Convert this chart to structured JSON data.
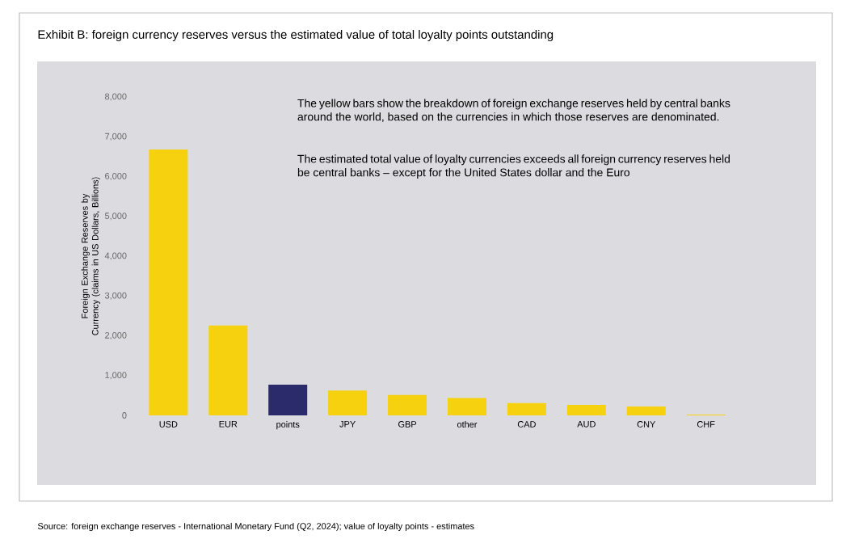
{
  "chart_data": {
    "type": "bar",
    "title": "Exhibit B: foreign currency reserves versus the estimated value of total loyalty points outstanding",
    "ylabel": "Foreign Exchange Reserves by Currency (claims in US Dollars, Billions)",
    "categories": [
      "USD",
      "EUR",
      "points",
      "JPY",
      "GBP",
      "other",
      "CAD",
      "AUD",
      "CNY",
      "CHF"
    ],
    "values": [
      6680,
      2260,
      770,
      625,
      515,
      435,
      310,
      265,
      225,
      20
    ],
    "colors": [
      "#f5d10f",
      "#f5d10f",
      "#2b2a6b",
      "#f5d10f",
      "#f5d10f",
      "#f5d10f",
      "#f5d10f",
      "#f5d10f",
      "#f5d10f",
      "#f5d10f"
    ],
    "ylim": [
      0,
      8000
    ],
    "yticks": [
      {
        "value": 0,
        "label": "0"
      },
      {
        "value": 1000,
        "label": "1,000"
      },
      {
        "value": 2000,
        "label": "2,000"
      },
      {
        "value": 3000,
        "label": "3,000"
      },
      {
        "value": 4000,
        "label": "4,000"
      },
      {
        "value": 5000,
        "label": "5,000"
      },
      {
        "value": 6000,
        "label": "6,000"
      },
      {
        "value": 7000,
        "label": "7,000"
      },
      {
        "value": 8000,
        "label": "8,000"
      }
    ],
    "grid": false,
    "annotations": [
      "The yellow bars show the breakdown of foreign exchange reserves held by central banks around the world, based on the currencies in which those reserves are denominated.",
      "The estimated total value of loyalty currencies exceeds all foreign currency reserves held be central banks – except for the United States dollar and the Euro",
      "Source: foreign exchange reserves - International Monetary Fund (Q2, 2024); value of loyalty points - estimates"
    ]
  }
}
